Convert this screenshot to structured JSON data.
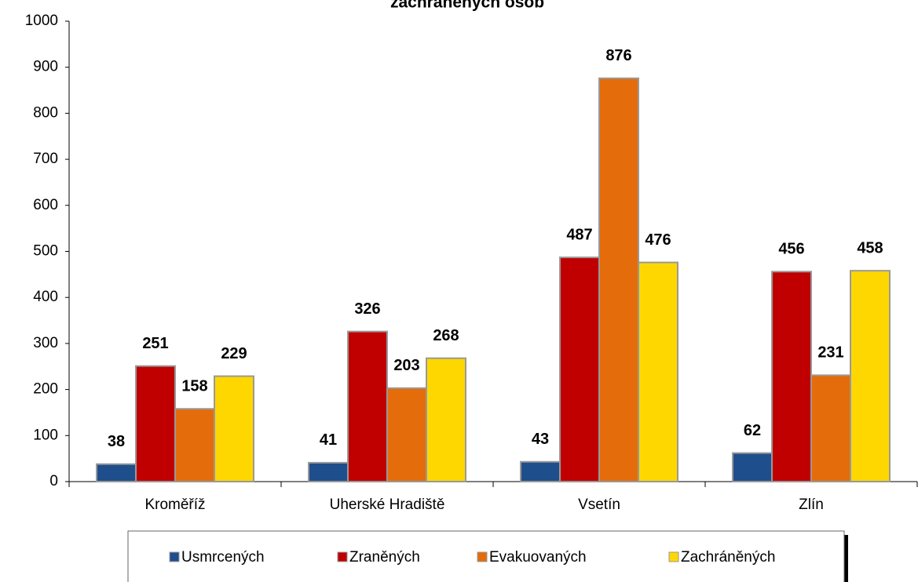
{
  "chart_data": {
    "type": "bar",
    "title": "zachráněných osob",
    "categories": [
      "Kroměříž",
      "Uherské Hradiště",
      "Vsetín",
      "Zlín"
    ],
    "series": [
      {
        "name": "Usmrcených",
        "color": "#1f4e8c",
        "values": [
          38,
          41,
          43,
          62
        ]
      },
      {
        "name": "Zraněných",
        "color": "#c00000",
        "values": [
          251,
          326,
          487,
          456
        ]
      },
      {
        "name": "Evakuovaných",
        "color": "#e46c0a",
        "values": [
          158,
          203,
          876,
          231
        ]
      },
      {
        "name": "Zachráněných",
        "color": "#ffd700",
        "values": [
          229,
          268,
          476,
          458
        ]
      }
    ],
    "ylim": [
      0,
      1000
    ],
    "yticks": [
      0,
      100,
      200,
      300,
      400,
      500,
      600,
      700,
      800,
      900,
      1000
    ],
    "legend": "bottom"
  }
}
